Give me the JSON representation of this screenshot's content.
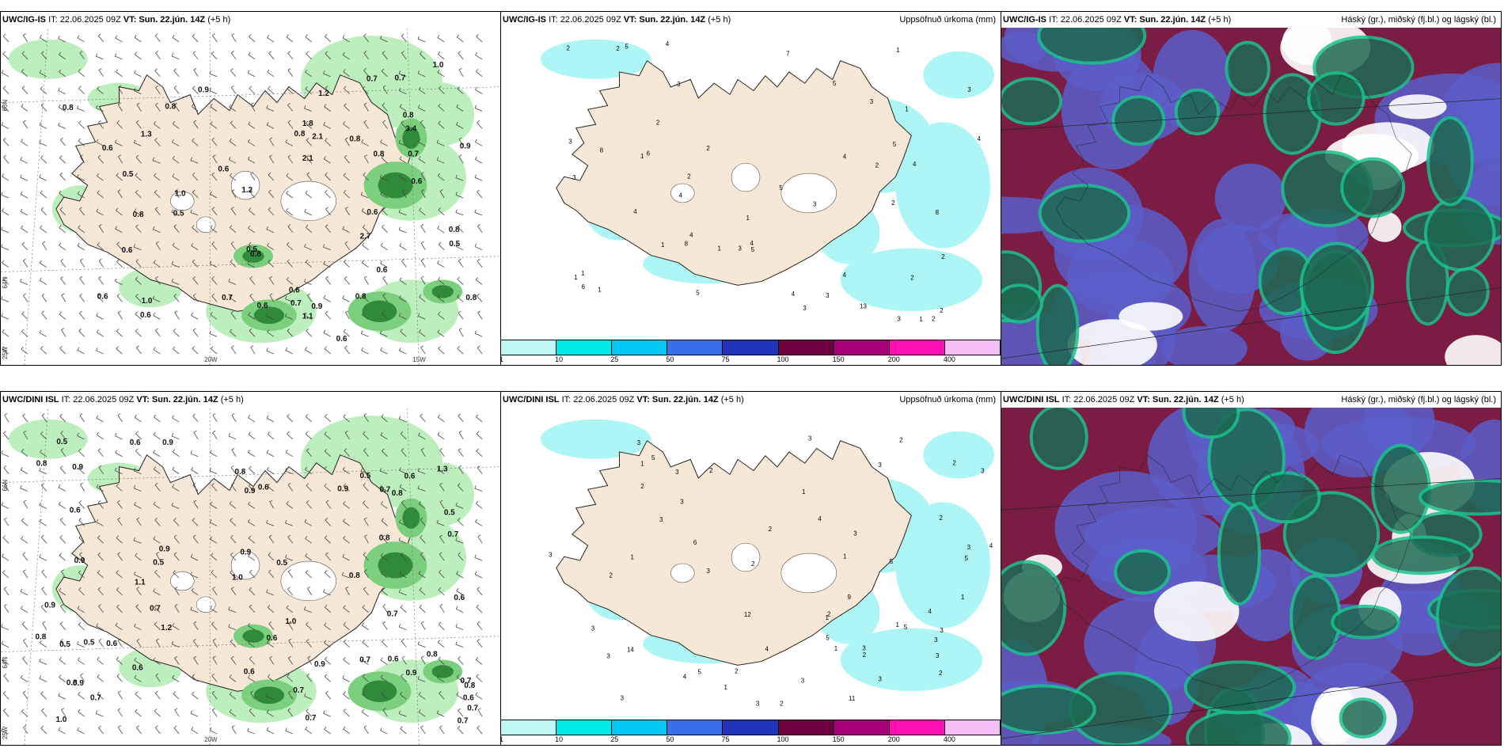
{
  "rows": [
    {
      "wind": {
        "model": "UWC/IG-IS",
        "it": "IT: 22.06.2025 09Z",
        "vt": "VT: Sun. 22.jún. 14Z",
        "lead": "(+5 h)",
        "lat_labels": [
          "66N",
          "64N",
          "25W"
        ],
        "lon_labels": [
          "20W",
          "15W"
        ],
        "values": [
          "0.8",
          "0.6",
          "0.8",
          "0.6",
          "0.7",
          "0.6",
          "0.6",
          "0.7",
          "0.6",
          "0.5",
          "0.9",
          "0.8",
          "0.6",
          "0.7",
          "0.6",
          "0.6",
          "1.0",
          "0.8",
          "0.5",
          "0.6",
          "0.6",
          "2.1",
          "3.4",
          "1.1",
          "1.2",
          "0.8",
          "1.0",
          "0.5",
          "0.6",
          "1.0",
          "0.8",
          "0.7",
          "0.8",
          "0.9",
          "1.8",
          "0.8",
          "2.1",
          "1.2",
          "0.9",
          "1.3",
          "0.8",
          "2.7",
          "0.5",
          "0.8",
          "0.8",
          "0.7"
        ]
      },
      "precip": {
        "model": "UWC/IG-IS",
        "it": "IT: 22.06.2025 09Z",
        "vt": "VT: Sun. 22.jún. 14Z",
        "lead": "(+5 h)",
        "title": "Uppsöfnuð úrkoma (mm)",
        "values": [
          "1",
          "1",
          "2",
          "2",
          "2",
          "3",
          "3",
          "4",
          "8",
          "2",
          "4",
          "7",
          "2",
          "3",
          "2",
          "4",
          "5",
          "4",
          "3",
          "2",
          "1",
          "6",
          "3",
          "1",
          "2",
          "4",
          "4",
          "1",
          "1",
          "1",
          "4",
          "1",
          "1",
          "2",
          "3",
          "3",
          "8",
          "5",
          "4",
          "5",
          "3",
          "2",
          "8",
          "13",
          "5",
          "6",
          "4",
          "2",
          "4",
          "5",
          "3",
          "5",
          "3",
          "1"
        ]
      },
      "cloud": {
        "model": "UWC/IG-IS",
        "it": "IT: 22.06.2025 09Z",
        "vt": "VT: Sun. 22.jún. 14Z",
        "lead": "(+5 h)",
        "title": "Háský (gr.), miðský (fj.bl.) og lágský (bl.)"
      }
    },
    {
      "wind": {
        "model": "UWC/DINI ISL",
        "it": "IT: 22.06.2025 09Z",
        "vt": "VT: Sun. 22.jún. 14Z",
        "lead": "(+5 h)",
        "lat_labels": [
          "66N",
          "64N",
          "25W"
        ],
        "lon_labels": [
          "20W"
        ],
        "values": [
          "0.7",
          "0.7",
          "0.7",
          "0.7",
          "0.5",
          "0.7",
          "0.6",
          "0.6",
          "0.7",
          "0.8",
          "0.5",
          "0.8",
          "0.9",
          "0.7",
          "0.6",
          "0.9",
          "0.8",
          "0.8",
          "0.5",
          "1.0",
          "0.8",
          "1.1",
          "0.9",
          "0.6",
          "0.8",
          "1.0",
          "0.6",
          "0.7",
          "0.9",
          "0.8",
          "0.5",
          "0.9",
          "0.7",
          "0.6",
          "0.8",
          "1.0",
          "0.7",
          "0.6",
          "0.5",
          "0.6",
          "0.7",
          "0.9",
          "1.2",
          "0.9",
          "0.6",
          "0.9",
          "0.5",
          "0.9",
          "0.6",
          "0.8",
          "0.6",
          "0.5",
          "0.9",
          "0.9",
          "1.3"
        ]
      },
      "precip": {
        "model": "UWC/DINI ISL",
        "it": "IT: 22.06.2025 09Z",
        "vt": "VT: Sun. 22.jún. 14Z",
        "lead": "(+5 h)",
        "title": "Uppsöfnuð úrkoma (mm)",
        "values": [
          "1",
          "1",
          "2",
          "2",
          "2",
          "2",
          "3",
          "2",
          "2",
          "4",
          "3",
          "3",
          "3",
          "3",
          "2",
          "3",
          "2",
          "3",
          "4",
          "5",
          "3",
          "3",
          "1",
          "1",
          "2",
          "1",
          "3",
          "3",
          "3",
          "3",
          "3",
          "3",
          "3",
          "5",
          "1",
          "5",
          "3",
          "3",
          "2",
          "4",
          "3",
          "2",
          "3",
          "1",
          "2",
          "2",
          "11",
          "12",
          "1",
          "3",
          "5",
          "5",
          "9",
          "5",
          "14",
          "6",
          "4",
          "1",
          "4"
        ]
      },
      "cloud": {
        "model": "UWC/DINI ISL",
        "it": "IT: 22.06.2025 09Z",
        "vt": "VT: Sun. 22.jún. 14Z",
        "lead": "(+5 h)",
        "title": "Háský (gr.), miðský (fj.bl.) og lágský (bl.)"
      }
    }
  ],
  "colorbar": {
    "colors": [
      "#bff7f7",
      "#00eaea",
      "#00c8f0",
      "#3870ea",
      "#2033b8",
      "#700040",
      "#a8007a",
      "#ff10b4",
      "#f5bdf5"
    ],
    "ticks": [
      "1",
      "10",
      "25",
      "50",
      "75",
      "100",
      "150",
      "200",
      "400"
    ]
  },
  "colors": {
    "land": "#f7e7d6",
    "sea": "#ffffff",
    "precip_light": "#aef6f6",
    "wind_green": "#2f8b3a",
    "cloud_high": "#1d6a53",
    "cloud_mid": "#5b5ec9",
    "cloud_low": "#7a1c44"
  }
}
